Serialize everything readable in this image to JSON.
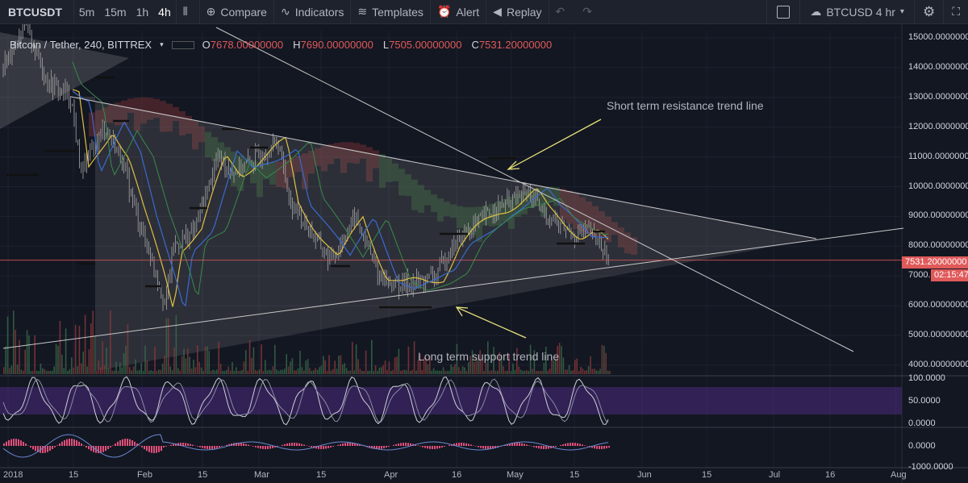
{
  "toolbar": {
    "symbol": "BTCUSDT",
    "intervals": [
      "5m",
      "15m",
      "1h",
      "4h"
    ],
    "active_interval": "4h",
    "compare_label": "Compare",
    "indicators_label": "Indicators",
    "templates_label": "Templates",
    "alert_label": "Alert",
    "replay_label": "Replay",
    "right_symbol": "BTCUSD 4 hr",
    "icons": [
      "candles-icon",
      "compare-icon",
      "indicators-icon",
      "templates-icon",
      "alert-icon",
      "replay-icon",
      "undo-icon",
      "redo-icon",
      "cloud-icon",
      "gear-icon"
    ]
  },
  "legend": {
    "title": "Bitcoin / Tether, 240, BITTREX",
    "open_label": "O",
    "open": "7678.00000000",
    "high_label": "H",
    "high": "7690.00000000",
    "low_label": "L",
    "low": "7505.00000000",
    "close_label": "C",
    "close": "7531.20000000"
  },
  "annotations": {
    "resistance": "Short term resistance trend line",
    "support": "Long term support trend line"
  },
  "price_axis": {
    "ticks": [
      "15000.00000000",
      "14000.00000000",
      "13000.00000000",
      "12000.00000000",
      "11000.00000000",
      "10000.00000000",
      "9000.00000000",
      "8000.00000000",
      "7000.00000000",
      "6000.00000000",
      "5000.00000000",
      "4000.00000000"
    ],
    "last_price": "7531.20000000",
    "countdown": "02:15:47"
  },
  "stoch_axis": {
    "ticks": [
      "100.0000",
      "50.0000",
      "0.0000"
    ]
  },
  "macd_axis": {
    "ticks": [
      "0.0000",
      "-1000.0000"
    ]
  },
  "time_axis": {
    "labels": [
      "2018",
      "15",
      "Feb",
      "15",
      "Mar",
      "15",
      "Apr",
      "16",
      "May",
      "15",
      "Jun",
      "15",
      "Jul",
      "16",
      "Aug"
    ]
  },
  "colors": {
    "background": "#131722",
    "toolbar": "#1e222d",
    "price_tag": "#e05a5a",
    "stoch_band": "#4b2a7d",
    "trendline": "#c8c8c8",
    "arrow": "#e6e07a"
  }
}
